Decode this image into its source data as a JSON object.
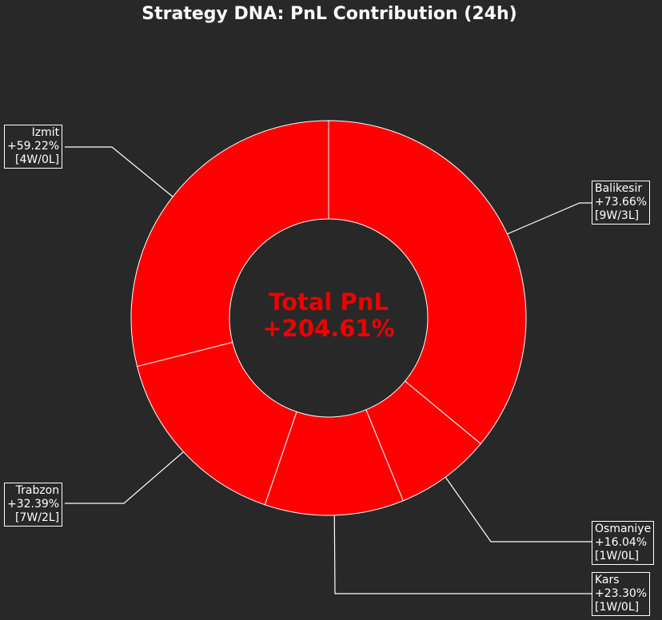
{
  "title": "Strategy DNA: PnL Contribution (24h)",
  "center": {
    "line1": "Total PnL",
    "line2": "+204.61%"
  },
  "colors": {
    "background": "#282828",
    "slice": "#ff0000",
    "edge": "#ffffff",
    "center_text": "#ee0000"
  },
  "chart_data": {
    "type": "donut",
    "title": "Strategy DNA: PnL Contribution (24h)",
    "total": "+204.61%",
    "slices": [
      {
        "name": "Balikesir",
        "value": 73.66,
        "pnl": "+73.66%",
        "record": "[9W/3L]"
      },
      {
        "name": "Osmaniye",
        "value": 16.04,
        "pnl": "+16.04%",
        "record": "[1W/0L]"
      },
      {
        "name": "Kars",
        "value": 23.3,
        "pnl": "+23.30%",
        "record": "[1W/0L]"
      },
      {
        "name": "Trabzon",
        "value": 32.39,
        "pnl": "+32.39%",
        "record": "[7W/2L]"
      },
      {
        "name": "Izmit",
        "value": 59.22,
        "pnl": "+59.22%",
        "record": "[4W/0L]"
      }
    ]
  }
}
